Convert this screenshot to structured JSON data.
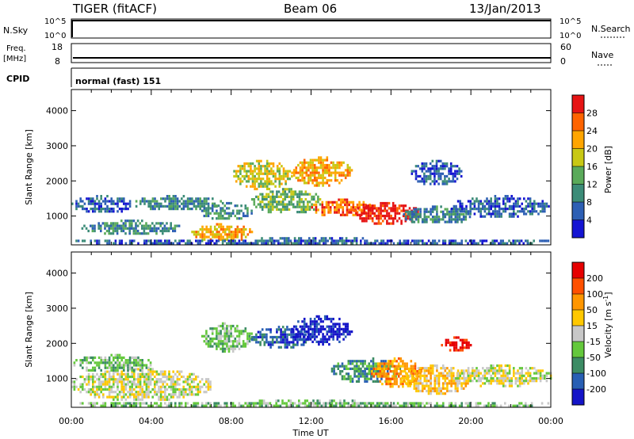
{
  "header": {
    "radar": "TIGER (fitACF)",
    "beam": "Beam 06",
    "date": "13/Jan/2013"
  },
  "strips": {
    "nsky_label": "N.Sky",
    "nsearch_label": "N.Search",
    "nsky_ticks": [
      "10^5",
      "10^0"
    ],
    "nsearch_ticks": [
      "10^5",
      "10^0"
    ],
    "freq_label_1": "Freq.",
    "freq_label_2": "[MHz]",
    "freq_ticks": [
      "18",
      "8"
    ],
    "nave_label": "Nave",
    "nave_ticks": [
      "60",
      "0"
    ],
    "cpid_label": "CPID",
    "cpid_value": "normal (fast) 151"
  },
  "colors": {
    "power": [
      "#1414d2",
      "#2d5fb4",
      "#3c8c78",
      "#5aaa5a",
      "#c8c814",
      "#ffa500",
      "#ff6400",
      "#e61414"
    ],
    "velocity": [
      "#1414c8",
      "#285fb4",
      "#3c8c64",
      "#64c83c",
      "#c8c8c8",
      "#ffc800",
      "#ff9600",
      "#ff5000",
      "#e60000"
    ]
  },
  "chart_data": [
    {
      "type": "heatmap",
      "name": "power",
      "xlabel": "",
      "ylabel": "Slant Range [km]",
      "x_ticks": [
        "00:00",
        "04:00",
        "08:00",
        "12:00",
        "16:00",
        "20:00",
        "00:00"
      ],
      "x_range_hours": [
        0,
        24
      ],
      "y_range_km": [
        180,
        4600
      ],
      "y_ticks": [
        1000,
        2000,
        3000,
        4000
      ],
      "colorbar_label": "Power [dB]",
      "colorbar_ticks": [
        "28",
        "24",
        "20",
        "16",
        "12",
        "8",
        "4"
      ],
      "scale": [
        0,
        32
      ],
      "blobs": [
        {
          "t0": 0.0,
          "t1": 3.0,
          "r0": 1100,
          "r1": 1600,
          "level": 1
        },
        {
          "t0": 0.5,
          "t1": 5.5,
          "r0": 500,
          "r1": 900,
          "level": 2
        },
        {
          "t0": 3.0,
          "t1": 7.5,
          "r0": 1200,
          "r1": 1600,
          "level": 2
        },
        {
          "t0": 6.0,
          "t1": 9.0,
          "r0": 300,
          "r1": 800,
          "level": 5
        },
        {
          "t0": 6.5,
          "t1": 9.0,
          "r0": 900,
          "r1": 1400,
          "level": 2
        },
        {
          "t0": 8.0,
          "t1": 11.0,
          "r0": 1800,
          "r1": 2600,
          "level": 4
        },
        {
          "t0": 9.0,
          "t1": 12.5,
          "r0": 1100,
          "r1": 1800,
          "level": 3
        },
        {
          "t0": 11.0,
          "t1": 14.0,
          "r0": 1900,
          "r1": 2700,
          "level": 5
        },
        {
          "t0": 12.0,
          "t1": 15.0,
          "r0": 1000,
          "r1": 1500,
          "level": 6
        },
        {
          "t0": 14.0,
          "t1": 17.5,
          "r0": 800,
          "r1": 1400,
          "level": 7
        },
        {
          "t0": 16.5,
          "t1": 20.0,
          "r0": 800,
          "r1": 1300,
          "level": 2
        },
        {
          "t0": 17.0,
          "t1": 19.5,
          "r0": 1900,
          "r1": 2600,
          "level": 1
        },
        {
          "t0": 19.0,
          "t1": 24.0,
          "r0": 1000,
          "r1": 1600,
          "level": 1
        },
        {
          "t0": 0.0,
          "t1": 24.0,
          "r0": 200,
          "r1": 400,
          "level": 1
        }
      ]
    },
    {
      "type": "heatmap",
      "name": "velocity",
      "xlabel": "Time UT",
      "ylabel": "Slant Range [km]",
      "x_ticks": [
        "00:00",
        "04:00",
        "08:00",
        "12:00",
        "16:00",
        "20:00",
        "00:00"
      ],
      "x_range_hours": [
        0,
        24
      ],
      "y_range_km": [
        180,
        4600
      ],
      "y_ticks": [
        1000,
        2000,
        3000,
        4000
      ],
      "colorbar_label": "Velocity [m s^-1]",
      "colorbar_ticks": [
        "200",
        "100",
        "50",
        "15",
        "-15",
        "-50",
        "-100",
        "-200"
      ],
      "blobs": [
        {
          "t0": 0.0,
          "t1": 7.0,
          "r0": 400,
          "r1": 1300,
          "level": 4
        },
        {
          "t0": 0.0,
          "t1": 4.0,
          "r0": 1200,
          "r1": 1700,
          "level": 3
        },
        {
          "t0": 6.5,
          "t1": 9.0,
          "r0": 1800,
          "r1": 2600,
          "level": 3
        },
        {
          "t0": 9.0,
          "t1": 12.0,
          "r0": 1900,
          "r1": 2500,
          "level": 1
        },
        {
          "t0": 11.0,
          "t1": 14.0,
          "r0": 2000,
          "r1": 2800,
          "level": 0
        },
        {
          "t0": 13.0,
          "t1": 16.5,
          "r0": 900,
          "r1": 1600,
          "level": 2
        },
        {
          "t0": 15.0,
          "t1": 17.5,
          "r0": 800,
          "r1": 1600,
          "level": 6
        },
        {
          "t0": 16.5,
          "t1": 20.0,
          "r0": 600,
          "r1": 1400,
          "level": 5
        },
        {
          "t0": 18.5,
          "t1": 20.0,
          "r0": 1800,
          "r1": 2200,
          "level": 8
        },
        {
          "t0": 19.0,
          "t1": 24.0,
          "r0": 800,
          "r1": 1400,
          "level": 4
        },
        {
          "t0": 0.0,
          "t1": 24.0,
          "r0": 200,
          "r1": 400,
          "level": 3
        }
      ]
    }
  ]
}
